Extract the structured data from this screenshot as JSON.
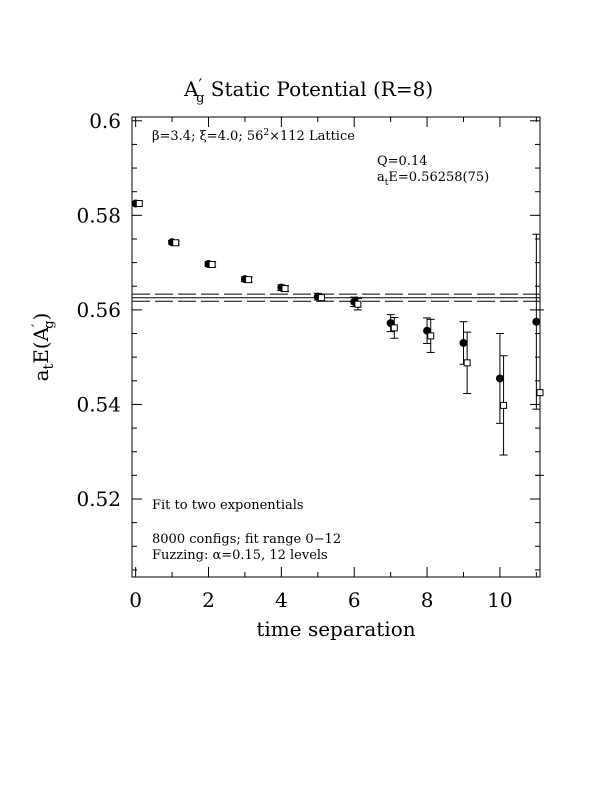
{
  "chart_data": {
    "type": "scatter",
    "title": "A′g  Static Potential (R=8)",
    "title_main": "A",
    "title_prime": "′",
    "title_sub": "g",
    "title_rest": "  Static Potential (R=8)",
    "xlabel": "time separation",
    "ylabel_main": "a",
    "ylabel_sub": "t",
    "ylabel_mid": "E(A",
    "ylabel_prime": "′",
    "ylabel_sub2": "g",
    "ylabel_end": ")",
    "xlim": [
      -0.1,
      11.1
    ],
    "ylim": [
      0.5035,
      0.6008
    ],
    "x_ticks": [
      0,
      2,
      4,
      6,
      8,
      10
    ],
    "x_tick_labels": [
      "0",
      "2",
      "4",
      "6",
      "8",
      "10"
    ],
    "y_ticks": [
      0.52,
      0.54,
      0.56,
      0.58,
      0.6
    ],
    "y_tick_labels": [
      "0.52",
      "0.54",
      "0.56",
      "0.58",
      "0.6"
    ],
    "annotations": {
      "lattice_a": "β=3.4; ξ=4.0; 56",
      "lattice_sup": "2",
      "lattice_b": "×112 Lattice",
      "q_value": "Q=0.14",
      "fit_value_a": "a",
      "fit_value_sub": "t",
      "fit_value_b": "E=0.56258(75)",
      "fit_type": "Fit to two exponentials",
      "configs": "8000 configs; fit range 0−12",
      "fuzzing": "Fuzzing: α=0.15, 12 levels"
    },
    "fit_band": {
      "center": 0.56258,
      "error": 0.00075
    },
    "series": [
      {
        "marker": "filled-circle",
        "x": [
          0,
          1,
          2,
          3,
          4,
          5,
          6,
          7,
          8,
          9,
          10,
          11
        ],
        "y": [
          0.5825,
          0.5743,
          0.5697,
          0.5665,
          0.5647,
          0.5628,
          0.5617,
          0.5572,
          0.5556,
          0.553,
          0.5455,
          0.5575
        ],
        "err": [
          0.0003,
          0.0004,
          0.0005,
          0.0005,
          0.0006,
          0.0007,
          0.001,
          0.0018,
          0.0027,
          0.0045,
          0.0095,
          0.0185
        ]
      },
      {
        "marker": "open-square",
        "x": [
          0.1,
          1.1,
          2.1,
          3.1,
          4.1,
          5.1,
          6.1,
          7.1,
          8.1,
          9.1,
          10.1,
          11.1
        ],
        "y": [
          0.5825,
          0.5742,
          0.5696,
          0.5664,
          0.5645,
          0.5626,
          0.5612,
          0.5562,
          0.5545,
          0.5488,
          0.5398,
          0.5425
        ],
        "err": [
          0.0003,
          0.0004,
          0.0005,
          0.0005,
          0.0006,
          0.0007,
          0.0012,
          0.0022,
          0.0035,
          0.0065,
          0.0105,
          0.0175
        ]
      }
    ]
  }
}
